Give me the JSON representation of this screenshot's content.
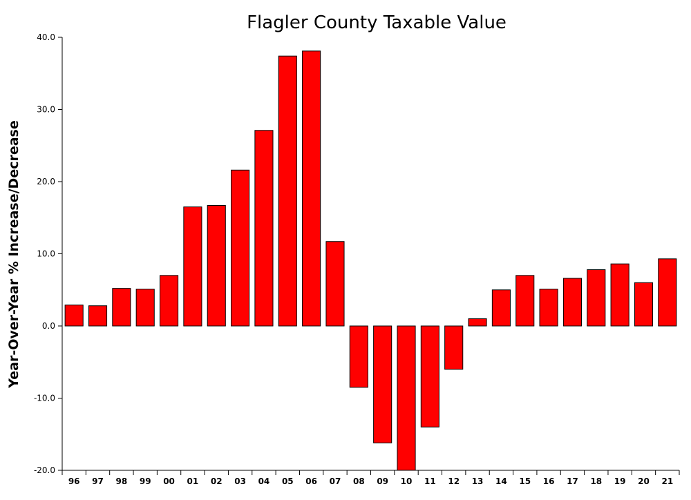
{
  "chart_data": {
    "type": "bar",
    "title": "Flagler County Taxable Value",
    "xlabel": "",
    "ylabel": "Year-Over-Year % Increase/Decrease",
    "ylim": [
      -20,
      40
    ],
    "yticks": [
      "40.0",
      "30.0",
      "20.0",
      "10.0",
      "0.0",
      "-10.0",
      "-20.0"
    ],
    "ytick_values": [
      40,
      30,
      20,
      10,
      0,
      -10,
      -20
    ],
    "grid": false,
    "bar_color": "#ff0000",
    "categories": [
      "96",
      "97",
      "98",
      "99",
      "00",
      "01",
      "02",
      "03",
      "04",
      "05",
      "06",
      "07",
      "08",
      "09",
      "10",
      "11",
      "12",
      "13",
      "14",
      "15",
      "16",
      "17",
      "18",
      "19",
      "20",
      "21"
    ],
    "values": [
      2.9,
      2.8,
      5.2,
      5.1,
      7.0,
      16.5,
      16.7,
      21.6,
      27.1,
      37.4,
      38.1,
      11.7,
      -8.5,
      -16.2,
      -20.0,
      -14.0,
      -6.0,
      1.0,
      5.0,
      7.0,
      5.1,
      6.6,
      7.8,
      8.6,
      6.0,
      9.3
    ]
  }
}
